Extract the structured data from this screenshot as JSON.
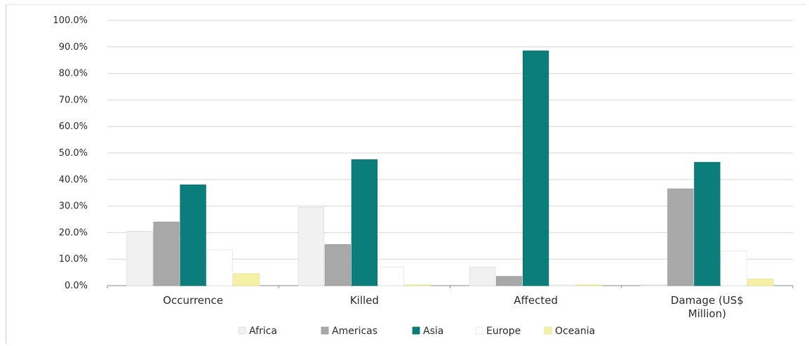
{
  "chart_data": {
    "type": "bar",
    "categories": [
      [
        "Occurrence"
      ],
      [
        "Killed"
      ],
      [
        "Affected"
      ],
      [
        "Damage (US$",
        "Million)"
      ]
    ],
    "series": [
      {
        "name": "Africa",
        "color": "#f1f1f1",
        "stroke": "#dcdcdc",
        "values": [
          20.5,
          29.5,
          7.0,
          0.3
        ]
      },
      {
        "name": "Americas",
        "color": "#a8a8a8",
        "stroke": "#9a9a9a",
        "values": [
          24.0,
          15.5,
          3.5,
          36.5
        ]
      },
      {
        "name": "Asia",
        "color": "#0b7d7b",
        "stroke": "#096f6d",
        "values": [
          38.0,
          47.5,
          88.5,
          46.5
        ]
      },
      {
        "name": "Europe",
        "color": "#ffffff",
        "stroke": "#e4e4e4",
        "values": [
          13.5,
          7.0,
          0.3,
          13.0
        ]
      },
      {
        "name": "Oceania",
        "color": "#f5f0a6",
        "stroke": "#e9e290",
        "values": [
          4.5,
          0.3,
          0.3,
          2.5
        ]
      }
    ],
    "ylim": [
      0,
      100
    ],
    "yticks": [
      "0.0%",
      "10.0%",
      "20.0%",
      "30.0%",
      "40.0%",
      "50.0%",
      "60.0%",
      "70.0%",
      "80.0%",
      "90.0%",
      "100.0%"
    ],
    "grid": true,
    "legend": "bottom"
  }
}
